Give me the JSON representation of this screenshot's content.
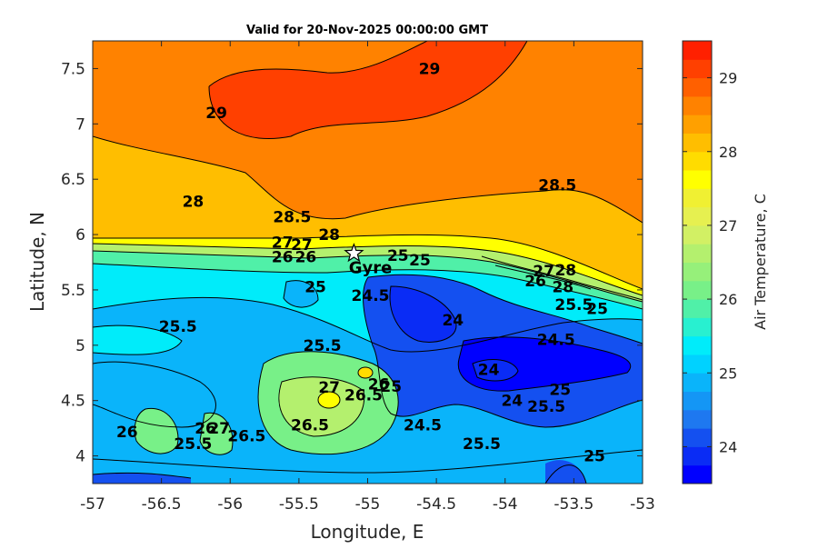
{
  "chart_data": {
    "type": "heatmap",
    "subtype": "filled-contour",
    "title": "Valid for 20-Nov-2025 00:00:00 GMT",
    "xlabel": "Longitude, E",
    "ylabel": "Latitude, N",
    "xlim": [
      -57,
      -53
    ],
    "ylim": [
      3.75,
      7.75
    ],
    "xticks": [
      -57,
      -56.5,
      -56,
      -55.5,
      -55,
      -54.5,
      -54,
      -53.5,
      -53
    ],
    "xtick_labels": [
      "-57",
      "-56.5",
      "-56",
      "-55.5",
      "-55",
      "-54.5",
      "-54",
      "-53.5",
      "-53"
    ],
    "yticks": [
      4,
      4.5,
      5,
      5.5,
      6,
      6.5,
      7,
      7.5
    ],
    "ytick_labels": [
      "4",
      "4.5",
      "5",
      "5.5",
      "6",
      "6.5",
      "7",
      "7.5"
    ],
    "grid": false,
    "colorbar": {
      "label": "Air Temperature, C",
      "range": [
        23.5,
        29.5
      ],
      "ticks": [
        24,
        25,
        26,
        27,
        28,
        29
      ],
      "tick_labels": [
        "24",
        "25",
        "26",
        "27",
        "28",
        "29"
      ],
      "levels": [
        23.5,
        23.75,
        24,
        24.25,
        24.5,
        24.75,
        25,
        25.25,
        25.5,
        25.75,
        26,
        26.25,
        26.5,
        26.75,
        27,
        27.25,
        27.5,
        27.75,
        28,
        28.25,
        28.5,
        28.75,
        29,
        29.25,
        29.5
      ],
      "colors": [
        "#0000ff",
        "#0a2cf5",
        "#1450f0",
        "#1e78f0",
        "#1496f5",
        "#0ab4fa",
        "#00d2ff",
        "#00ecfa",
        "#28f0d0",
        "#50f0a8",
        "#78f088",
        "#96f07a",
        "#b4f06e",
        "#d2f064",
        "#e6f050",
        "#f0f032",
        "#ffff00",
        "#ffdc00",
        "#ffbe00",
        "#ffa000",
        "#ff8200",
        "#ff6000",
        "#ff4000",
        "#ff2000",
        "#ff0000"
      ]
    },
    "marker": {
      "label": "Gyre",
      "lon": -55.1,
      "lat": 5.83,
      "symbol": "star"
    },
    "contour_labels": [
      {
        "text": "29",
        "lon": -54.55,
        "lat": 7.5
      },
      {
        "text": "29",
        "lon": -56.1,
        "lat": 7.1
      },
      {
        "text": "28",
        "lon": -56.27,
        "lat": 6.3
      },
      {
        "text": "28.5",
        "lon": -55.55,
        "lat": 6.16
      },
      {
        "text": "28.5",
        "lon": -53.62,
        "lat": 6.45
      },
      {
        "text": "28",
        "lon": -55.28,
        "lat": 6.0
      },
      {
        "text": "27",
        "lon": -55.62,
        "lat": 5.93
      },
      {
        "text": "27",
        "lon": -55.48,
        "lat": 5.91
      },
      {
        "text": "26",
        "lon": -55.62,
        "lat": 5.8
      },
      {
        "text": "26",
        "lon": -55.45,
        "lat": 5.8
      },
      {
        "text": "Gyre",
        "lon": -54.98,
        "lat": 5.7
      },
      {
        "text": "25",
        "lon": -54.78,
        "lat": 5.81
      },
      {
        "text": "25",
        "lon": -54.62,
        "lat": 5.77
      },
      {
        "text": "25",
        "lon": -55.38,
        "lat": 5.53
      },
      {
        "text": "24.5",
        "lon": -54.98,
        "lat": 5.45
      },
      {
        "text": "24",
        "lon": -54.38,
        "lat": 5.23
      },
      {
        "text": "25.5",
        "lon": -56.38,
        "lat": 5.17
      },
      {
        "text": "25.5",
        "lon": -55.33,
        "lat": 5.0
      },
      {
        "text": "27",
        "lon": -55.28,
        "lat": 4.62
      },
      {
        "text": "26.5",
        "lon": -55.03,
        "lat": 4.55
      },
      {
        "text": "26",
        "lon": -54.92,
        "lat": 4.65
      },
      {
        "text": "25",
        "lon": -54.83,
        "lat": 4.63
      },
      {
        "text": "26.5",
        "lon": -55.42,
        "lat": 4.28
      },
      {
        "text": "24.5",
        "lon": -54.6,
        "lat": 4.28
      },
      {
        "text": "24",
        "lon": -54.12,
        "lat": 4.78
      },
      {
        "text": "24",
        "lon": -53.95,
        "lat": 4.5
      },
      {
        "text": "25.5",
        "lon": -54.17,
        "lat": 4.11
      },
      {
        "text": "26",
        "lon": -56.75,
        "lat": 4.22
      },
      {
        "text": "25.5",
        "lon": -56.27,
        "lat": 4.11
      },
      {
        "text": "26",
        "lon": -56.18,
        "lat": 4.25
      },
      {
        "text": "27",
        "lon": -56.08,
        "lat": 4.25
      },
      {
        "text": "26.5",
        "lon": -55.88,
        "lat": 4.18
      },
      {
        "text": "27",
        "lon": -53.72,
        "lat": 5.67
      },
      {
        "text": "28",
        "lon": -53.56,
        "lat": 5.68
      },
      {
        "text": "26",
        "lon": -53.78,
        "lat": 5.58
      },
      {
        "text": "28",
        "lon": -53.58,
        "lat": 5.53
      },
      {
        "text": "25.5",
        "lon": -53.5,
        "lat": 5.37
      },
      {
        "text": "25",
        "lon": -53.33,
        "lat": 5.33
      },
      {
        "text": "24.5",
        "lon": -53.63,
        "lat": 5.05
      },
      {
        "text": "25",
        "lon": -53.6,
        "lat": 4.6
      },
      {
        "text": "25.5",
        "lon": -53.7,
        "lat": 4.45
      },
      {
        "text": "25",
        "lon": -53.35,
        "lat": 4.0
      }
    ]
  }
}
